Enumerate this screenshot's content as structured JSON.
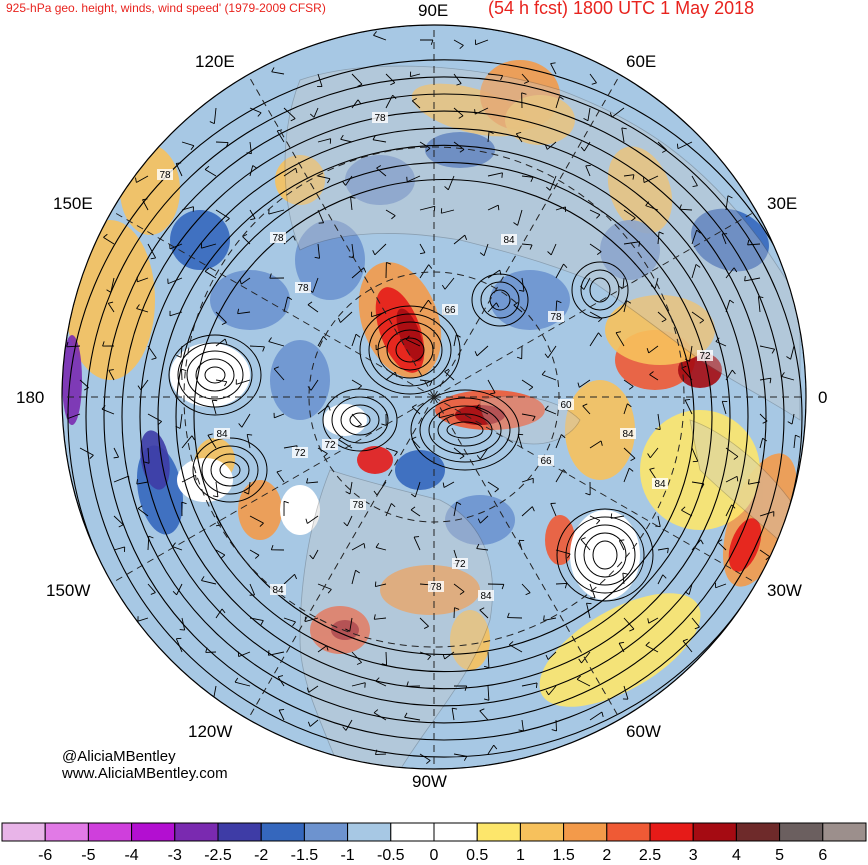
{
  "header": {
    "title_left": "925-hPa geo. height, winds, wind speed' (1979-2009 CFSR)",
    "title_right": "(54 h fcst) 1800 UTC 1 May 2018"
  },
  "map": {
    "projection": "north-polar-stereographic",
    "longitude_labels": {
      "top": "90E",
      "upper_left": "120E",
      "upper_right": "60E",
      "left_upper": "150E",
      "right_upper": "30E",
      "left": "180",
      "right": "0",
      "left_lower": "150W",
      "right_lower": "30W",
      "lower_left": "120W",
      "lower_right": "60W",
      "bottom": "90W"
    },
    "contour_labels": [
      "78",
      "78",
      "78",
      "78",
      "84",
      "66",
      "78",
      "84",
      "72",
      "72",
      "84",
      "78",
      "66",
      "84",
      "72",
      "84",
      "78",
      "84",
      "60",
      "72"
    ],
    "colors": {
      "land": "#c8c8c8",
      "contour": "#000000",
      "coast": "#555555",
      "title": "#e8231e"
    }
  },
  "credits": {
    "handle": "@AliciaMBentley",
    "website": "www.AliciaMBentley.com"
  },
  "colorbar": {
    "colors": [
      "#e8b4e8",
      "#e17ae6",
      "#cf3fdc",
      "#b30fd1",
      "#7a2ab0",
      "#3e3ca6",
      "#3567bd",
      "#6d93cf",
      "#a7c8e4",
      "#ffffff",
      "#ffffff",
      "#fde66b",
      "#f7c15c",
      "#f39a4a",
      "#ef5a35",
      "#e61b18",
      "#a50b12",
      "#6e2a2a",
      "#6b5f5f",
      "#9c8f8c"
    ],
    "tick_labels": [
      "-6",
      "-5",
      "-4",
      "-3",
      "-2.5",
      "-2",
      "-1.5",
      "-1",
      "-0.5",
      "0",
      "0.5",
      "1",
      "1.5",
      "2",
      "2.5",
      "3",
      "4",
      "5",
      "6"
    ]
  }
}
